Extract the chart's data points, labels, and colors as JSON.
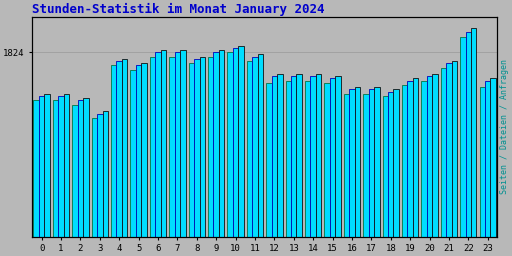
{
  "title": "Stunden-Statistik im Monat January 2024",
  "title_color": "#0000cc",
  "title_fontsize": 9,
  "ylabel": "Seiten / Dateien / Anfragen",
  "ylabel_color": "#009090",
  "background_color": "#b8b8b8",
  "plot_bg_color": "#b8b8b8",
  "ytick_label": "1824",
  "bar_groups": [
    0,
    1,
    2,
    3,
    4,
    5,
    6,
    7,
    8,
    9,
    10,
    11,
    12,
    13,
    14,
    15,
    16,
    17,
    18,
    19,
    20,
    21,
    22,
    23
  ],
  "bar_width": 0.28,
  "values_seiten": [
    62,
    62,
    60,
    54,
    78,
    76,
    82,
    82,
    79,
    82,
    84,
    80,
    70,
    71,
    71,
    70,
    65,
    65,
    64,
    69,
    71,
    77,
    91,
    68
  ],
  "values_dateien": [
    64,
    64,
    62,
    56,
    80,
    78,
    84,
    84,
    81,
    84,
    86,
    82,
    73,
    73,
    73,
    72,
    67,
    67,
    66,
    71,
    73,
    79,
    93,
    71
  ],
  "values_anfragen": [
    65,
    65,
    63,
    57,
    81,
    79,
    85,
    85,
    82,
    85,
    87,
    83,
    74,
    74,
    74,
    73,
    68,
    68,
    67,
    72,
    74,
    80,
    95,
    72
  ],
  "color_seiten": "#00ddff",
  "color_dateien": "#00ddff",
  "color_anfragen": "#00ddff",
  "edge_seiten": "#007744",
  "edge_dateien": "#0000bb",
  "edge_anfragen": "#111111",
  "grid_color": "#999999",
  "border_color": "#000000",
  "ymax": 100,
  "ytick_pos": 84
}
